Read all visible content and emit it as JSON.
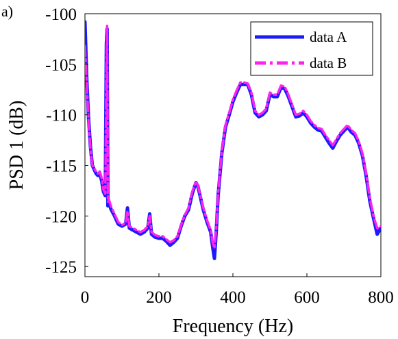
{
  "panel_label": "a)",
  "chart_data": {
    "type": "line",
    "title": "",
    "xlabel": "Frequency (Hz)",
    "ylabel": "PSD 1 (dB)",
    "xlim": [
      0,
      800
    ],
    "ylim": [
      -126,
      -100
    ],
    "xticks": [
      0,
      200,
      400,
      600,
      800
    ],
    "yticks": [
      -100,
      -105,
      -110,
      -115,
      -120,
      -125
    ],
    "xtick_labels": [
      "0",
      "200",
      "400",
      "600",
      "800"
    ],
    "ytick_labels": [
      "-100",
      "-105",
      "-110",
      "-115",
      "-120",
      "-125"
    ],
    "grid": false,
    "legend": {
      "position": "top-right",
      "entries": [
        "data A",
        "data B"
      ]
    },
    "series": [
      {
        "name": "data A",
        "color": "#1a1aff",
        "style": "solid",
        "x": [
          0,
          5,
          10,
          15,
          20,
          25,
          30,
          35,
          40,
          45,
          50,
          55,
          58,
          60,
          62,
          65,
          70,
          80,
          90,
          100,
          110,
          115,
          120,
          130,
          140,
          150,
          160,
          170,
          175,
          180,
          190,
          200,
          210,
          220,
          230,
          240,
          250,
          260,
          270,
          280,
          290,
          300,
          305,
          310,
          320,
          330,
          340,
          345,
          350,
          355,
          360,
          370,
          380,
          390,
          400,
          410,
          420,
          430,
          440,
          450,
          460,
          470,
          480,
          490,
          500,
          510,
          520,
          530,
          540,
          550,
          560,
          570,
          580,
          590,
          600,
          610,
          620,
          630,
          640,
          650,
          660,
          670,
          680,
          690,
          700,
          710,
          720,
          730,
          740,
          750,
          760,
          770,
          780,
          790,
          800
        ],
        "y": [
          -100.8,
          -106.5,
          -110.5,
          -113.2,
          -115.0,
          -115.4,
          -115.8,
          -116.0,
          -115.8,
          -116.5,
          -117.6,
          -118.0,
          -103.0,
          -101.5,
          -119.0,
          -118.6,
          -119.3,
          -120.0,
          -120.8,
          -121.0,
          -120.8,
          -119.2,
          -121.2,
          -121.4,
          -121.6,
          -121.8,
          -121.6,
          -121.2,
          -119.8,
          -121.8,
          -122.1,
          -122.2,
          -122.2,
          -122.5,
          -122.9,
          -122.6,
          -122.2,
          -121.0,
          -120.0,
          -119.4,
          -117.8,
          -116.7,
          -117.0,
          -117.8,
          -119.4,
          -120.6,
          -121.6,
          -123.0,
          -124.2,
          -121.5,
          -118.0,
          -113.8,
          -111.2,
          -110.0,
          -108.7,
          -107.8,
          -107.0,
          -107.0,
          -107.0,
          -108.0,
          -109.8,
          -110.2,
          -110.0,
          -109.6,
          -108.0,
          -108.2,
          -108.2,
          -107.3,
          -107.4,
          -108.2,
          -109.2,
          -110.2,
          -110.1,
          -109.8,
          -110.2,
          -110.8,
          -111.2,
          -111.5,
          -111.6,
          -112.2,
          -112.8,
          -113.3,
          -112.6,
          -112.0,
          -111.6,
          -111.2,
          -111.7,
          -112.0,
          -112.8,
          -114.0,
          -116.0,
          -118.5,
          -120.2,
          -121.8,
          -121.2
        ]
      },
      {
        "name": "data B",
        "color": "#ff22ee",
        "style": "dash-dot",
        "x": [
          0,
          5,
          10,
          15,
          20,
          25,
          30,
          35,
          40,
          45,
          50,
          55,
          58,
          60,
          62,
          65,
          70,
          80,
          90,
          100,
          110,
          115,
          120,
          130,
          140,
          150,
          160,
          170,
          175,
          180,
          190,
          200,
          210,
          220,
          230,
          240,
          250,
          260,
          270,
          280,
          290,
          300,
          305,
          310,
          320,
          330,
          340,
          345,
          350,
          355,
          360,
          370,
          380,
          390,
          400,
          410,
          420,
          430,
          440,
          450,
          460,
          470,
          480,
          490,
          500,
          510,
          520,
          530,
          540,
          550,
          560,
          570,
          580,
          590,
          600,
          610,
          620,
          630,
          640,
          650,
          660,
          670,
          680,
          690,
          700,
          710,
          720,
          730,
          740,
          750,
          760,
          770,
          780,
          790,
          800
        ],
        "y": [
          -103.2,
          -107.0,
          -110.8,
          -113.4,
          -115.0,
          -115.3,
          -115.6,
          -115.8,
          -115.6,
          -116.2,
          -117.4,
          -117.8,
          -106.0,
          -101.2,
          -118.6,
          -118.4,
          -119.0,
          -119.8,
          -120.6,
          -120.9,
          -120.7,
          -119.5,
          -121.0,
          -121.2,
          -121.4,
          -121.6,
          -121.4,
          -121.0,
          -120.0,
          -121.6,
          -121.9,
          -122.0,
          -122.0,
          -122.3,
          -122.6,
          -122.4,
          -122.0,
          -120.9,
          -119.9,
          -119.2,
          -117.6,
          -116.6,
          -116.9,
          -117.7,
          -119.2,
          -120.4,
          -121.4,
          -122.6,
          -123.2,
          -121.2,
          -117.8,
          -113.6,
          -111.0,
          -109.8,
          -108.5,
          -107.6,
          -106.8,
          -106.8,
          -106.9,
          -107.8,
          -109.6,
          -110.0,
          -109.8,
          -109.4,
          -107.8,
          -108.0,
          -108.0,
          -107.1,
          -107.2,
          -108.0,
          -109.0,
          -110.0,
          -109.9,
          -109.6,
          -110.0,
          -110.6,
          -111.0,
          -111.3,
          -111.4,
          -112.0,
          -112.5,
          -113.0,
          -112.4,
          -111.8,
          -111.4,
          -111.0,
          -111.5,
          -111.8,
          -112.6,
          -113.8,
          -115.8,
          -118.2,
          -120.0,
          -121.2,
          -121.0
        ]
      }
    ]
  }
}
